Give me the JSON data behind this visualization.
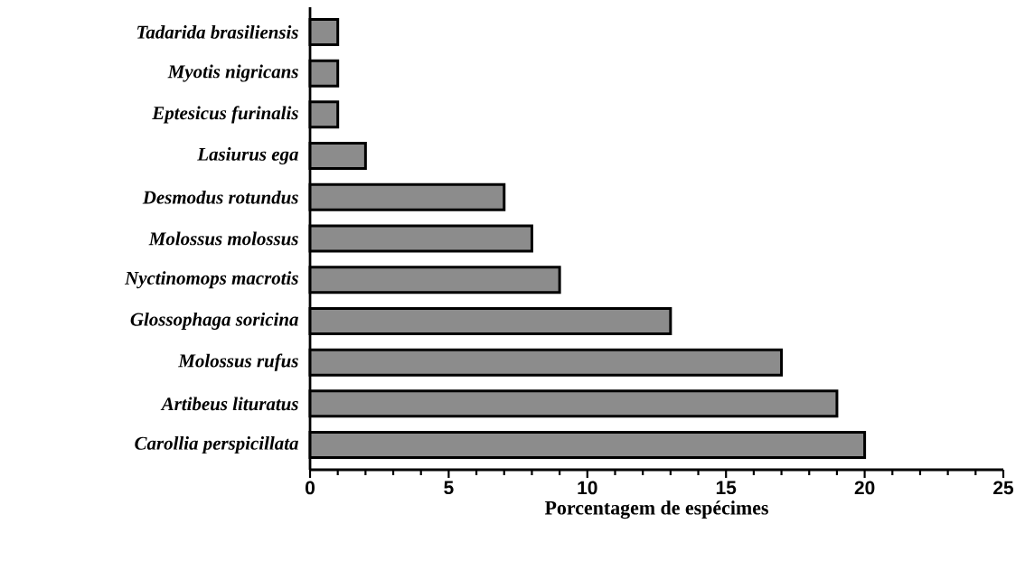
{
  "chart_data": {
    "type": "bar",
    "orientation": "horizontal",
    "xlabel": "Porcentagem de espécimes",
    "categories": [
      "Tadarida brasiliensis",
      "Myotis nigricans",
      "Eptesicus furinalis",
      "Lasiurus ega",
      "Desmodus rotundus",
      "Molossus molossus",
      "Nyctinomops macrotis",
      "Glossophaga soricina",
      "Molossus rufus",
      "Artibeus lituratus",
      "Carollia perspicillata"
    ],
    "values": [
      1,
      1,
      1,
      2,
      7,
      8,
      9,
      13,
      17,
      19,
      20
    ],
    "color": "#8c8c8c",
    "xlim": [
      0,
      25
    ],
    "xticks": [
      0,
      5,
      10,
      15,
      20,
      25
    ]
  }
}
